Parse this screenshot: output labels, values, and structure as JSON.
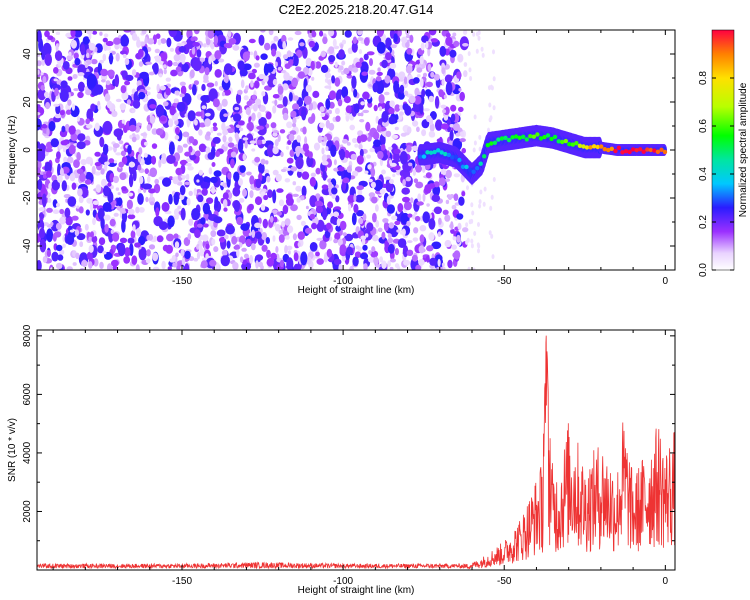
{
  "title": "C2E2.2025.218.20.47.G14",
  "chart_data": [
    {
      "type": "heatmap",
      "xlabel": "Height of straight line (km)",
      "ylabel": "Frequency (Hz)",
      "xlim": [
        -195,
        3
      ],
      "ylim": [
        -50,
        50
      ],
      "xticks": [
        -150,
        -100,
        -50,
        0
      ],
      "yticks": [
        -40,
        -20,
        0,
        20,
        40
      ],
      "colorbar": {
        "label": "Normalized spectral amplitude",
        "range": [
          0,
          1
        ],
        "ticks": [
          "0.0",
          "0.2",
          "0.4",
          "0.6",
          "0.8"
        ]
      },
      "regions": [
        {
          "name": "noise",
          "x_range": [
            -195,
            -62
          ],
          "freq_range": [
            -50,
            50
          ],
          "amplitude": 0.15
        },
        {
          "name": "signal",
          "x_range": [
            -75,
            0
          ],
          "freq_center": [
            -4,
            6,
            0
          ],
          "amplitude_range": [
            0.3,
            1.0
          ]
        }
      ],
      "signal_track": {
        "x": [
          -75,
          -70,
          -65,
          -60,
          -57,
          -55,
          -50,
          -45,
          -40,
          -35,
          -30,
          -25,
          -20,
          -15,
          -10,
          -5,
          0
        ],
        "freq": [
          -2,
          -1,
          -3,
          -10,
          -6,
          3,
          4,
          5,
          6,
          5,
          3,
          1,
          1,
          0,
          0,
          0,
          0
        ],
        "amplitude": [
          0.35,
          0.45,
          0.3,
          0.35,
          0.4,
          0.55,
          0.55,
          0.6,
          0.55,
          0.55,
          0.6,
          0.75,
          0.9,
          0.95,
          1.0,
          1.0,
          0.95
        ]
      }
    },
    {
      "type": "line",
      "xlabel": "Height of straight line (km)",
      "ylabel": "SNR (10 * v/v)",
      "xlim": [
        -195,
        3
      ],
      "ylim": [
        0,
        8200
      ],
      "xticks": [
        -150,
        -100,
        -50,
        0
      ],
      "yticks": [
        2000,
        4000,
        6000,
        8000
      ],
      "series": [
        {
          "color": "#ee3333",
          "envelope": {
            "x": [
              -195,
              -150,
              -125,
              -100,
              -62,
              -58,
              -55,
              -50,
              -45,
              -42,
              -40,
              -38,
              -37,
              -35,
              -33,
              -30,
              -27,
              -25,
              -20,
              -15,
              -13,
              -10,
              -5,
              -2,
              0,
              3
            ],
            "y": [
              200,
              200,
              250,
              200,
              200,
              350,
              600,
              1000,
              1800,
              2600,
              3200,
              3800,
              8100,
              3600,
              3400,
              5200,
              4400,
              3600,
              4500,
              3400,
              5400,
              3200,
              4400,
              5100,
              4200,
              4900
            ]
          }
        }
      ]
    }
  ]
}
